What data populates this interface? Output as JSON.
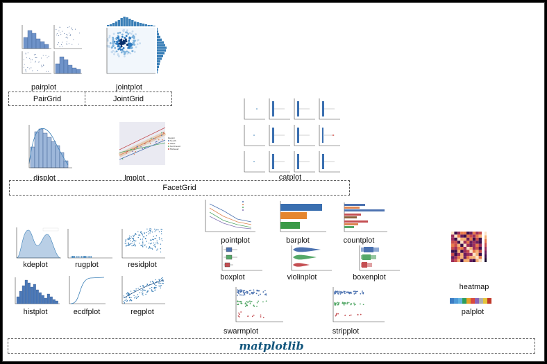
{
  "labels": {
    "pairplot": "pairplot",
    "jointplot": "jointplot",
    "displot": "displot",
    "lmplot": "lmplot",
    "catplot": "catplot",
    "pointplot": "pointplot",
    "barplot": "barplot",
    "countplot": "countplot",
    "kdeplot": "kdeplot",
    "rugplot": "rugplot",
    "residplot": "residplot",
    "boxplot": "boxplot",
    "violinplot": "violinplot",
    "boxenplot": "boxenplot",
    "histplot": "histplot",
    "ecdfplot": "ecdfplot",
    "regplot": "regplot",
    "swarmplot": "swarmplot",
    "stripplot": "stripplot",
    "heatmap": "heatmap",
    "palplot": "palplot"
  },
  "groups": {
    "pairgrid": "PairGrid",
    "jointgrid": "JointGrid",
    "facetgrid": "FacetGrid",
    "matplotlib": "matplotlib"
  },
  "colors": {
    "seaborn_blue": "#1f77b4",
    "matplotlib_blue": "#11557c",
    "hist_blue": "#6f93c9",
    "palette": [
      "#3b7dc4",
      "#4c9ad8",
      "#61b3e0",
      "#2f9e5a",
      "#e6a128",
      "#d94a3f",
      "#8a64b8",
      "#b0b0b0",
      "#e3c53a",
      "#c0392b"
    ]
  }
}
